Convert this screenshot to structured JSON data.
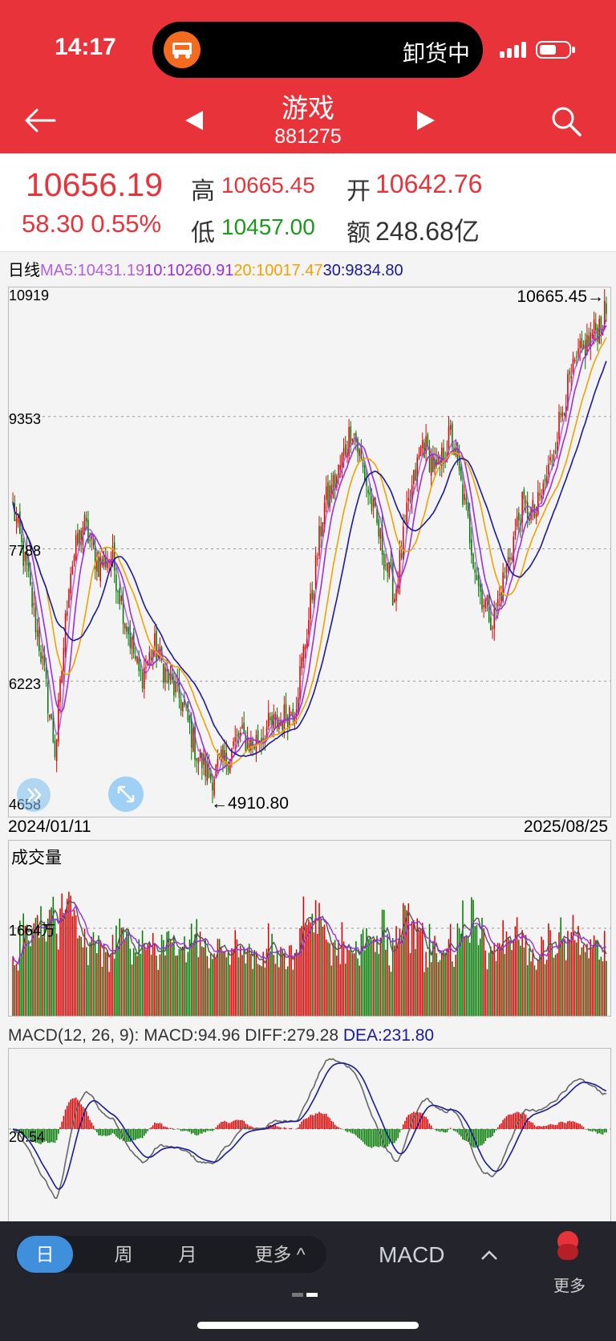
{
  "status_bar": {
    "time": "14:17",
    "activity": "卸货中"
  },
  "header": {
    "title": "游戏",
    "code": "881275"
  },
  "quote": {
    "price": "10656.19",
    "change": "58.30 0.55%",
    "high_label": "高",
    "high": "10665.45",
    "open_label": "开",
    "open": "10642.76",
    "low_label": "低",
    "low": "10457.00",
    "amount_label": "额",
    "amount": "248.68亿"
  },
  "ma_legend": {
    "period": "日线",
    "ma5": "MA5:10431.19",
    "ma10": "10:10260.91",
    "ma20": "20:10017.47",
    "ma30": "30:9834.80",
    "colors": {
      "ma5": "#9b2fe0",
      "ma10": "#9b2fe0",
      "ma20": "#f2a100",
      "ma30": "#1a1a9a",
      "up": "#e00000",
      "down": "#007a00"
    }
  },
  "price_axis": {
    "ticks": [
      "10919",
      "9353",
      "7788",
      "6223",
      "4658"
    ],
    "max_marker": "10665.45→",
    "min_marker": "←4910.80"
  },
  "date_range": {
    "start": "2024/01/11",
    "end": "2025/08/25"
  },
  "volume": {
    "label": "成交量",
    "tick": "1664万"
  },
  "macd": {
    "prefix": "MACD(12, 26, 9): MACD:94.96 DIFF:279.28 ",
    "dea": "DEA:231.80",
    "tick": "20.54"
  },
  "bottom_bar": {
    "tabs": [
      "日",
      "周",
      "月",
      "更多 ^"
    ],
    "indicator": "MACD",
    "more": "更多"
  },
  "chart_data": {
    "type": "candlestick",
    "title": "",
    "x_start": "2024/01/11",
    "x_end": "2025/08/25",
    "ylim": [
      4658,
      10919
    ],
    "close_path": [
      8300,
      7500,
      6500,
      5300,
      7500,
      8100,
      7600,
      7700,
      6900,
      6200,
      6600,
      6200,
      5900,
      5300,
      5000,
      5200,
      5500,
      5400,
      5600,
      5700,
      5900,
      7000,
      8300,
      8700,
      9300,
      8600,
      7900,
      7200,
      8300,
      9100,
      8700,
      9200,
      8300,
      7300,
      6900,
      7600,
      8300,
      8200,
      8800,
      9600,
      10100,
      10400,
      10656.19
    ],
    "volume_tick": 16640000,
    "macd_tick": 20.54
  }
}
